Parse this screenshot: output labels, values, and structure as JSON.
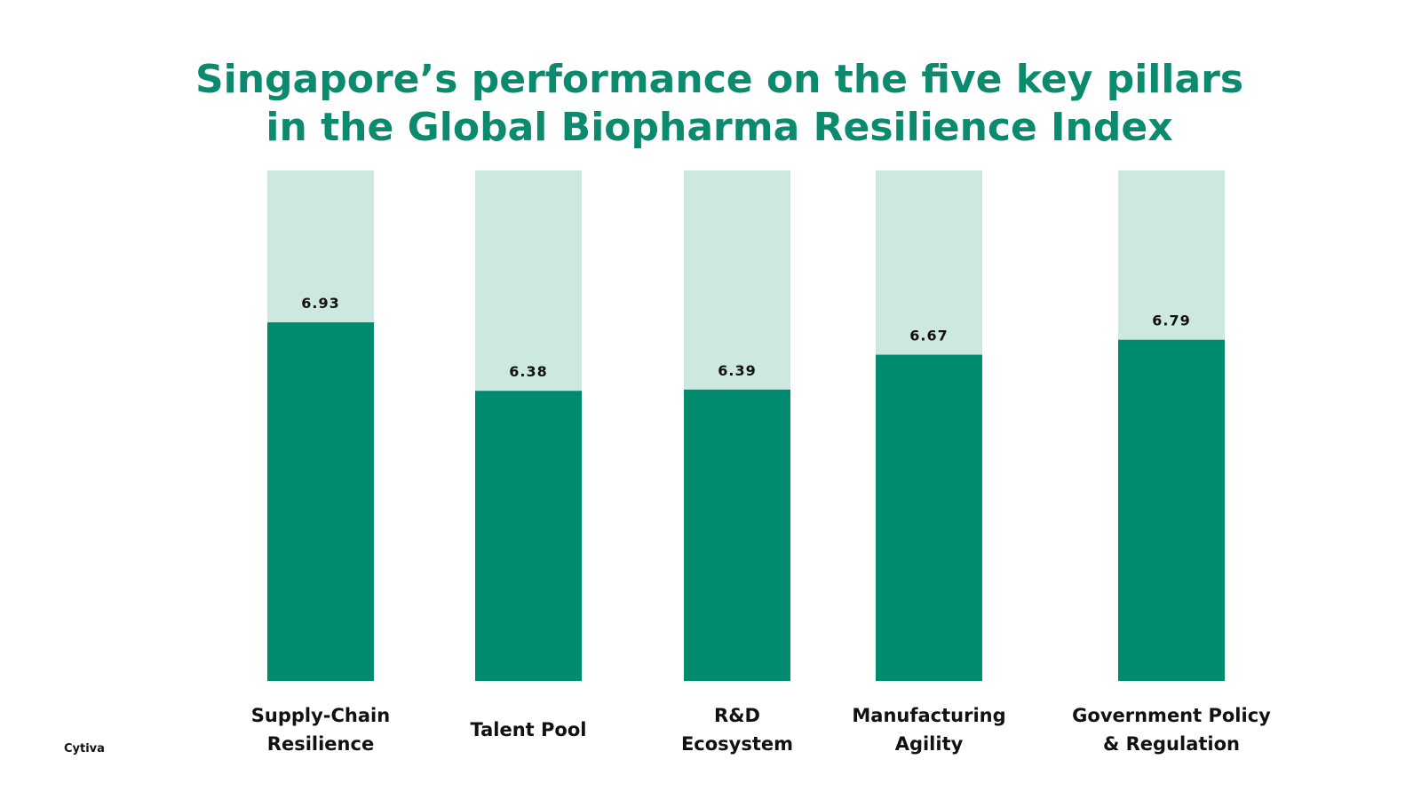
{
  "chart_data": {
    "type": "bar",
    "title": [
      "Singapore’s performance on the five key pillars",
      "in the Global Biopharma Resilience Index"
    ],
    "categories": [
      "Supply-Chain Resilience",
      "Talent Pool",
      "R&D Ecosystem",
      "Manufacturing Agility",
      "Government Policy & Regulation"
    ],
    "values": [
      6.93,
      6.38,
      6.39,
      6.67,
      6.79
    ],
    "color": "#008a6e",
    "track_color": "#cde7e1",
    "ylim": [
      4.05,
      8.15
    ],
    "source": "Cytiva"
  }
}
